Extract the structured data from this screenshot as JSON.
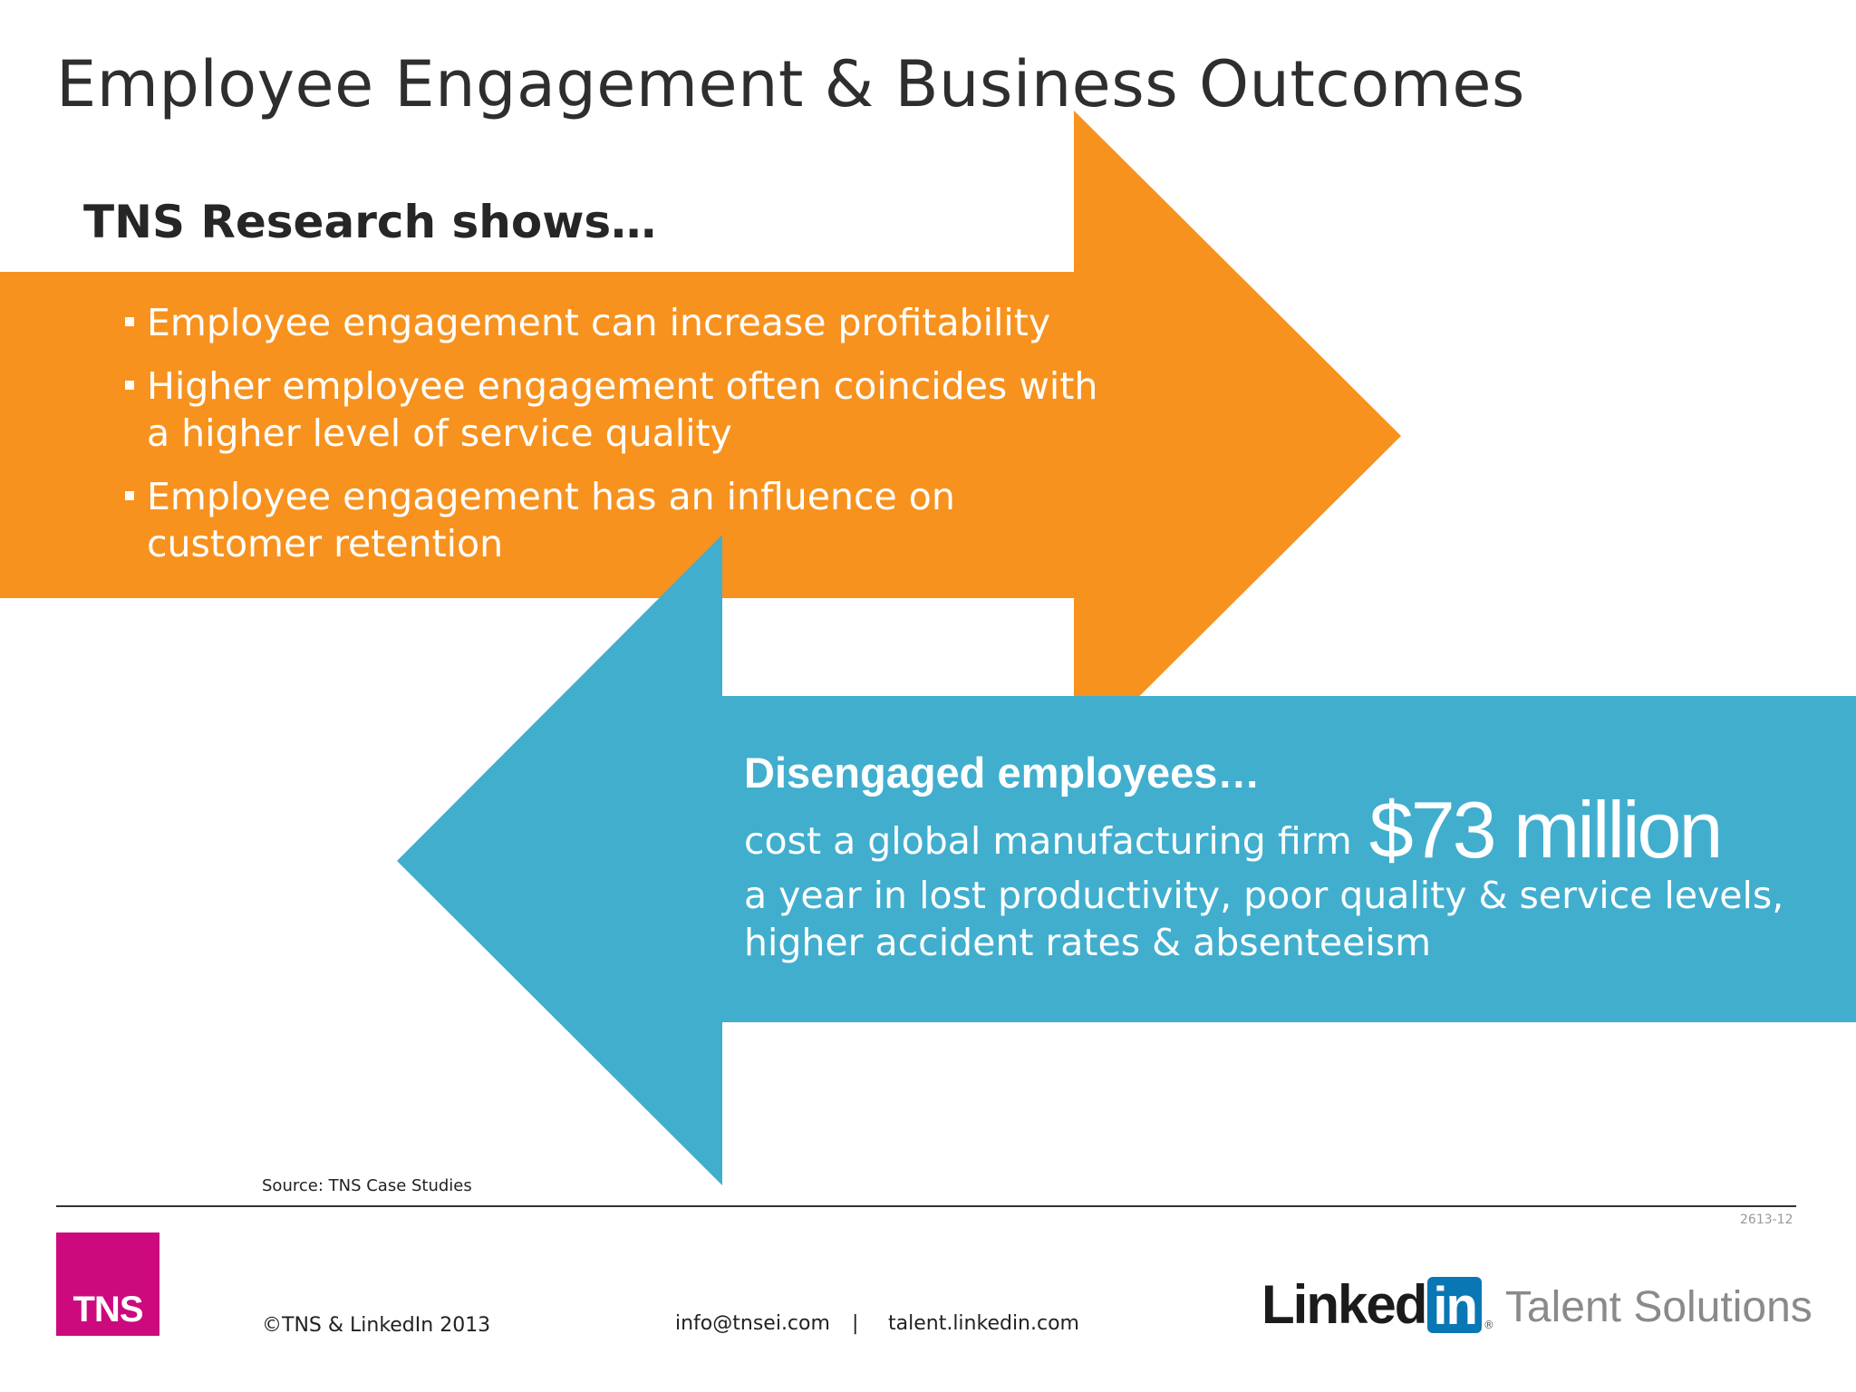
{
  "slide": {
    "title": "Employee Engagement & Business Outcomes",
    "subheading": "TNS Research shows…",
    "bullets": [
      "Employee engagement can increase profitability",
      "Higher employee engagement often coincides with a higher level of service quality",
      "Employee engagement has an influence on customer retention"
    ],
    "disengaged": {
      "heading": "Disengaged employees…",
      "cost_prefix": "cost a global manufacturing firm",
      "cost_amount": "$73 million",
      "cost_detail": "a year in lost productivity, poor quality & service levels, higher accident rates & absenteeism"
    },
    "source": "Source: TNS Case Studies",
    "slide_code": "2613-12"
  },
  "footer": {
    "tns_logo_text": "TNS",
    "copyright": "©TNS & LinkedIn 2013",
    "email": "info@tnsei.com",
    "separator": "|",
    "website": "talent.linkedin.com",
    "linkedin_word": "Linked",
    "linkedin_box": "in",
    "linkedin_mark": "®",
    "talent_solutions": "Talent Solutions"
  },
  "colors": {
    "orange_arrow": "#f7921e",
    "blue_arrow": "#41aece",
    "tns_magenta": "#cc0a7e",
    "linkedin_blue": "#0a77b5"
  }
}
